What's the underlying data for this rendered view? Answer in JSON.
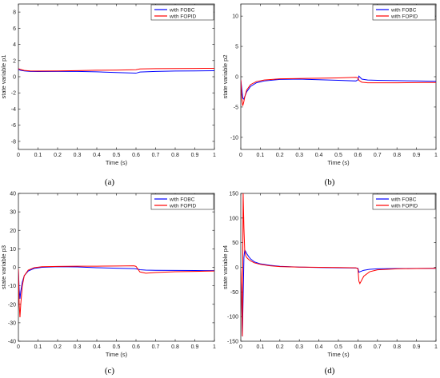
{
  "chart_data": [
    {
      "type": "line",
      "caption": "(a)",
      "xlabel": "Time (s)",
      "ylabel": "state variable p1",
      "xlim": [
        0,
        1
      ],
      "ylim": [
        -9,
        9
      ],
      "xticks": [
        0,
        0.1,
        0.2,
        0.3,
        0.4,
        0.5,
        0.6,
        0.7,
        0.8,
        0.9,
        1
      ],
      "yticks": [
        -8,
        -6,
        -4,
        -2,
        0,
        2,
        4,
        6,
        8
      ],
      "legend_position": "top-right",
      "series": [
        {
          "name": "with FOBC",
          "color": "#0000ff",
          "x": [
            0,
            0.01,
            0.03,
            0.06,
            0.1,
            0.2,
            0.3,
            0.4,
            0.5,
            0.55,
            0.6,
            0.62,
            0.7,
            0.8,
            0.9,
            1
          ],
          "y": [
            0.9,
            0.8,
            0.72,
            0.66,
            0.64,
            0.65,
            0.66,
            0.6,
            0.52,
            0.48,
            0.44,
            0.58,
            0.65,
            0.7,
            0.72,
            0.74
          ]
        },
        {
          "name": "with FOPID",
          "color": "#ff0000",
          "x": [
            0,
            0.01,
            0.03,
            0.06,
            0.1,
            0.2,
            0.3,
            0.4,
            0.5,
            0.55,
            0.6,
            0.62,
            0.7,
            0.8,
            0.9,
            1
          ],
          "y": [
            1.0,
            0.9,
            0.78,
            0.72,
            0.7,
            0.72,
            0.76,
            0.8,
            0.82,
            0.84,
            0.86,
            0.96,
            1.0,
            1.02,
            1.03,
            1.04
          ]
        }
      ]
    },
    {
      "type": "line",
      "caption": "(b)",
      "xlabel": "Time (s)",
      "ylabel": "state variable p2",
      "xlim": [
        0,
        1
      ],
      "ylim": [
        -12,
        12
      ],
      "xticks": [
        0,
        0.1,
        0.2,
        0.3,
        0.4,
        0.5,
        0.6,
        0.7,
        0.8,
        0.9,
        1
      ],
      "yticks": [
        -10,
        -5,
        0,
        5,
        10
      ],
      "legend_position": "top-right",
      "series": [
        {
          "name": "with FOBC",
          "color": "#0000ff",
          "x": [
            0,
            0.005,
            0.01,
            0.015,
            0.02,
            0.03,
            0.05,
            0.08,
            0.12,
            0.2,
            0.3,
            0.4,
            0.5,
            0.59,
            0.6,
            0.605,
            0.62,
            0.65,
            0.7,
            0.8,
            0.9,
            1
          ],
          "y": [
            -0.5,
            -2.0,
            -3.5,
            -3.7,
            -3.3,
            -2.5,
            -1.6,
            -1.0,
            -0.7,
            -0.45,
            -0.4,
            -0.5,
            -0.6,
            -0.7,
            -0.5,
            0.1,
            -0.4,
            -0.55,
            -0.6,
            -0.65,
            -0.7,
            -0.75
          ]
        },
        {
          "name": "with FOPID",
          "color": "#ff0000",
          "x": [
            0,
            0.005,
            0.01,
            0.015,
            0.02,
            0.03,
            0.05,
            0.08,
            0.12,
            0.2,
            0.3,
            0.4,
            0.5,
            0.59,
            0.6,
            0.605,
            0.62,
            0.65,
            0.7,
            0.8,
            0.9,
            1
          ],
          "y": [
            -0.5,
            -3.5,
            -4.8,
            -4.2,
            -3.4,
            -2.2,
            -1.3,
            -0.8,
            -0.55,
            -0.35,
            -0.3,
            -0.25,
            -0.2,
            -0.1,
            -0.2,
            -0.6,
            -0.9,
            -1.0,
            -1.0,
            -1.0,
            -0.98,
            -0.95
          ]
        }
      ]
    },
    {
      "type": "line",
      "caption": "(c)",
      "xlabel": "Time (s)",
      "ylabel": "state variable p3",
      "xlim": [
        0,
        1
      ],
      "ylim": [
        -40,
        40
      ],
      "xticks": [
        0,
        0.1,
        0.2,
        0.3,
        0.4,
        0.5,
        0.6,
        0.7,
        0.8,
        0.9,
        1
      ],
      "yticks": [
        -40,
        -30,
        -20,
        -10,
        0,
        10,
        20,
        30,
        40
      ],
      "legend_position": "top-right",
      "series": [
        {
          "name": "with FOBC",
          "color": "#0000ff",
          "x": [
            0,
            0.004,
            0.008,
            0.012,
            0.02,
            0.03,
            0.05,
            0.08,
            0.12,
            0.2,
            0.3,
            0.4,
            0.5,
            0.59,
            0.6,
            0.62,
            0.65,
            0.7,
            0.8,
            0.9,
            1
          ],
          "y": [
            -1,
            -12,
            -17,
            -13,
            -8,
            -4.5,
            -2,
            -0.6,
            0,
            0.3,
            0.2,
            -0.2,
            -0.5,
            -0.7,
            -0.8,
            -1.3,
            -1.5,
            -1.6,
            -1.7,
            -1.75,
            -1.8
          ]
        },
        {
          "name": "with FOPID",
          "color": "#ff0000",
          "x": [
            0,
            0.004,
            0.008,
            0.012,
            0.02,
            0.03,
            0.05,
            0.08,
            0.12,
            0.2,
            0.3,
            0.4,
            0.5,
            0.59,
            0.6,
            0.62,
            0.65,
            0.7,
            0.8,
            0.9,
            1
          ],
          "y": [
            -1,
            -20,
            -27,
            -20,
            -10,
            -4.5,
            -1.5,
            -0.2,
            0.3,
            0.5,
            0.6,
            0.6,
            0.7,
            0.8,
            0.5,
            -2.5,
            -3.2,
            -2.8,
            -2.4,
            -2.2,
            -2.0
          ]
        }
      ]
    },
    {
      "type": "line",
      "caption": "(d)",
      "xlabel": "Time (s)",
      "ylabel": "state variable p4",
      "xlim": [
        0,
        1
      ],
      "ylim": [
        -150,
        150
      ],
      "xticks": [
        0,
        0.1,
        0.2,
        0.3,
        0.4,
        0.5,
        0.6,
        0.7,
        0.8,
        0.9,
        1
      ],
      "yticks": [
        -150,
        -100,
        -50,
        0,
        50,
        100,
        150
      ],
      "legend_position": "top-right",
      "series": [
        {
          "name": "with FOBC",
          "color": "#0000ff",
          "x": [
            0,
            0.004,
            0.008,
            0.012,
            0.016,
            0.02,
            0.025,
            0.03,
            0.04,
            0.05,
            0.07,
            0.1,
            0.15,
            0.2,
            0.3,
            0.4,
            0.5,
            0.59,
            0.6,
            0.605,
            0.61,
            0.63,
            0.66,
            0.7,
            0.8,
            0.9,
            1
          ],
          "y": [
            -2,
            -60,
            -140,
            -60,
            20,
            35,
            32,
            28,
            22,
            17,
            11,
            7,
            4,
            2,
            0.5,
            -0.5,
            -1,
            -1.5,
            -2,
            -10,
            -9,
            -6,
            -4,
            -3,
            -2.5,
            -2.2,
            -2
          ]
        },
        {
          "name": "with FOPID",
          "color": "#ff0000",
          "x": [
            0,
            0.004,
            0.008,
            0.012,
            0.016,
            0.02,
            0.025,
            0.03,
            0.04,
            0.05,
            0.07,
            0.1,
            0.15,
            0.2,
            0.3,
            0.4,
            0.5,
            0.59,
            0.6,
            0.605,
            0.61,
            0.63,
            0.66,
            0.7,
            0.8,
            0.9,
            1
          ],
          "y": [
            -2,
            -50,
            -140,
            150,
            80,
            35,
            24,
            20,
            16,
            13,
            9,
            6,
            3,
            1.5,
            0.5,
            0,
            -0.5,
            -1,
            -3,
            -28,
            -33,
            -18,
            -9,
            -5,
            -3,
            -2.5,
            -2
          ]
        }
      ]
    }
  ]
}
